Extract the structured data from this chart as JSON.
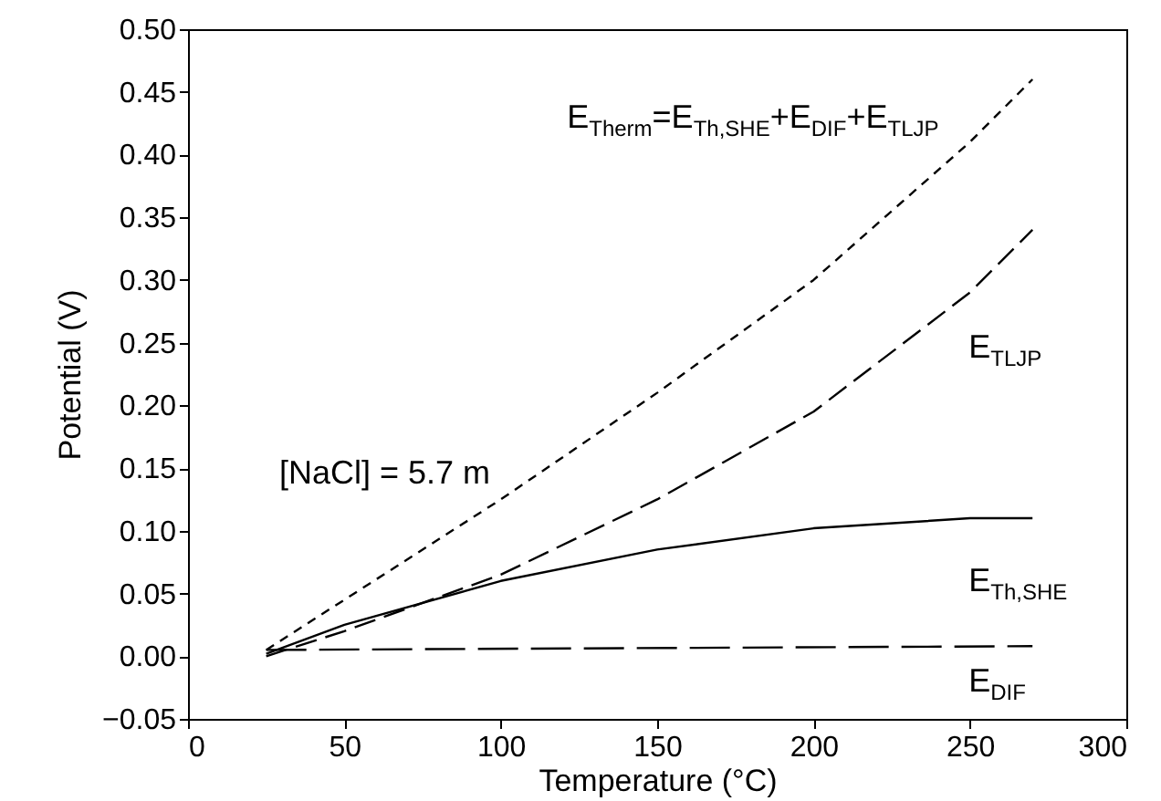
{
  "chart_data": {
    "type": "line",
    "xlabel": "Temperature (°C)",
    "ylabel": "Potential (V)",
    "xlim": [
      0,
      300
    ],
    "xticks": [
      0,
      50,
      100,
      150,
      200,
      250,
      300
    ],
    "ylim": [
      -0.05,
      0.5
    ],
    "yticks": [
      {
        "value": -0.05,
        "label": "−0.05"
      },
      {
        "value": 0,
        "label": "0.00"
      },
      {
        "value": 0.05,
        "label": "0.05"
      },
      {
        "value": 0.1,
        "label": "0.10"
      },
      {
        "value": 0.15,
        "label": "0.15"
      },
      {
        "value": 0.2,
        "label": "0.20"
      },
      {
        "value": 0.25,
        "label": "0.25"
      },
      {
        "value": 0.3,
        "label": "0.30"
      },
      {
        "value": 0.35,
        "label": "0.35"
      },
      {
        "value": 0.4,
        "label": "0.40"
      },
      {
        "value": 0.45,
        "label": "0.45"
      },
      {
        "value": 0.5,
        "label": "0.50"
      }
    ],
    "grid": false,
    "annotations": [
      "[NaCl] = 5.7 m"
    ],
    "series": [
      {
        "name": "E$_{Therm}$=E$_{Th,SHE}$+E$_{DIF}$+E$_{TLJP}$",
        "color": "#000000",
        "line_style": "dashed",
        "x": [
          25,
          50,
          100,
          150,
          200,
          250,
          270
        ],
        "values": [
          0.005,
          0.045,
          0.125,
          0.21,
          0.3,
          0.41,
          0.46
        ]
      },
      {
        "name": "E$_{TLJP}$",
        "color": "#000000",
        "line_style": "dashed",
        "x": [
          25,
          50,
          100,
          150,
          200,
          250,
          270
        ],
        "values": [
          0.0,
          0.02,
          0.065,
          0.125,
          0.195,
          0.29,
          0.34
        ]
      },
      {
        "name": "E$_{Th,SHE}$",
        "color": "#000000",
        "line_style": "solid",
        "x": [
          25,
          50,
          100,
          150,
          200,
          250,
          270
        ],
        "values": [
          0.002,
          0.025,
          0.06,
          0.085,
          0.102,
          0.11,
          0.11
        ]
      },
      {
        "name": "E$_{DIF}$",
        "color": "#000000",
        "line_style": "dashed",
        "x": [
          25,
          270
        ],
        "values": [
          0.005,
          0.008
        ]
      }
    ]
  }
}
